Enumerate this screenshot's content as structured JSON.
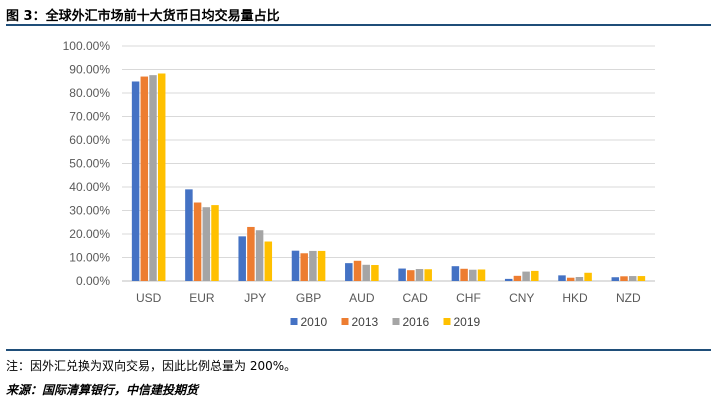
{
  "figure_title": "图 3：全球外汇市场前十大货币日均交易量占比",
  "note": "注：因外汇兑换为双向交易，因此比例总量为 200%。",
  "source": "来源：国际清算银行，中信建投期货",
  "chart_data": {
    "type": "bar",
    "categories": [
      "USD",
      "EUR",
      "JPY",
      "GBP",
      "AUD",
      "CAD",
      "CHF",
      "CNY",
      "HKD",
      "NZD"
    ],
    "series": [
      {
        "name": "2010",
        "color": "#4472c4",
        "values": [
          84.9,
          39.0,
          19.0,
          12.9,
          7.6,
          5.3,
          6.3,
          0.9,
          2.4,
          1.6
        ]
      },
      {
        "name": "2013",
        "color": "#ed7d31",
        "values": [
          87.0,
          33.4,
          23.0,
          11.8,
          8.6,
          4.6,
          5.2,
          2.2,
          1.4,
          2.0
        ]
      },
      {
        "name": "2016",
        "color": "#a5a5a5",
        "values": [
          87.6,
          31.4,
          21.6,
          12.8,
          6.9,
          5.1,
          4.8,
          4.0,
          1.7,
          2.1
        ]
      },
      {
        "name": "2019",
        "color": "#ffc000",
        "values": [
          88.3,
          32.3,
          16.8,
          12.8,
          6.8,
          5.0,
          4.9,
          4.3,
          3.5,
          2.1
        ]
      }
    ],
    "y_ticks": [
      "0.00%",
      "10.00%",
      "20.00%",
      "30.00%",
      "40.00%",
      "50.00%",
      "60.00%",
      "70.00%",
      "80.00%",
      "90.00%",
      "100.00%"
    ],
    "ylim": [
      0,
      100
    ],
    "grid": true,
    "legend_position": "bottom"
  }
}
